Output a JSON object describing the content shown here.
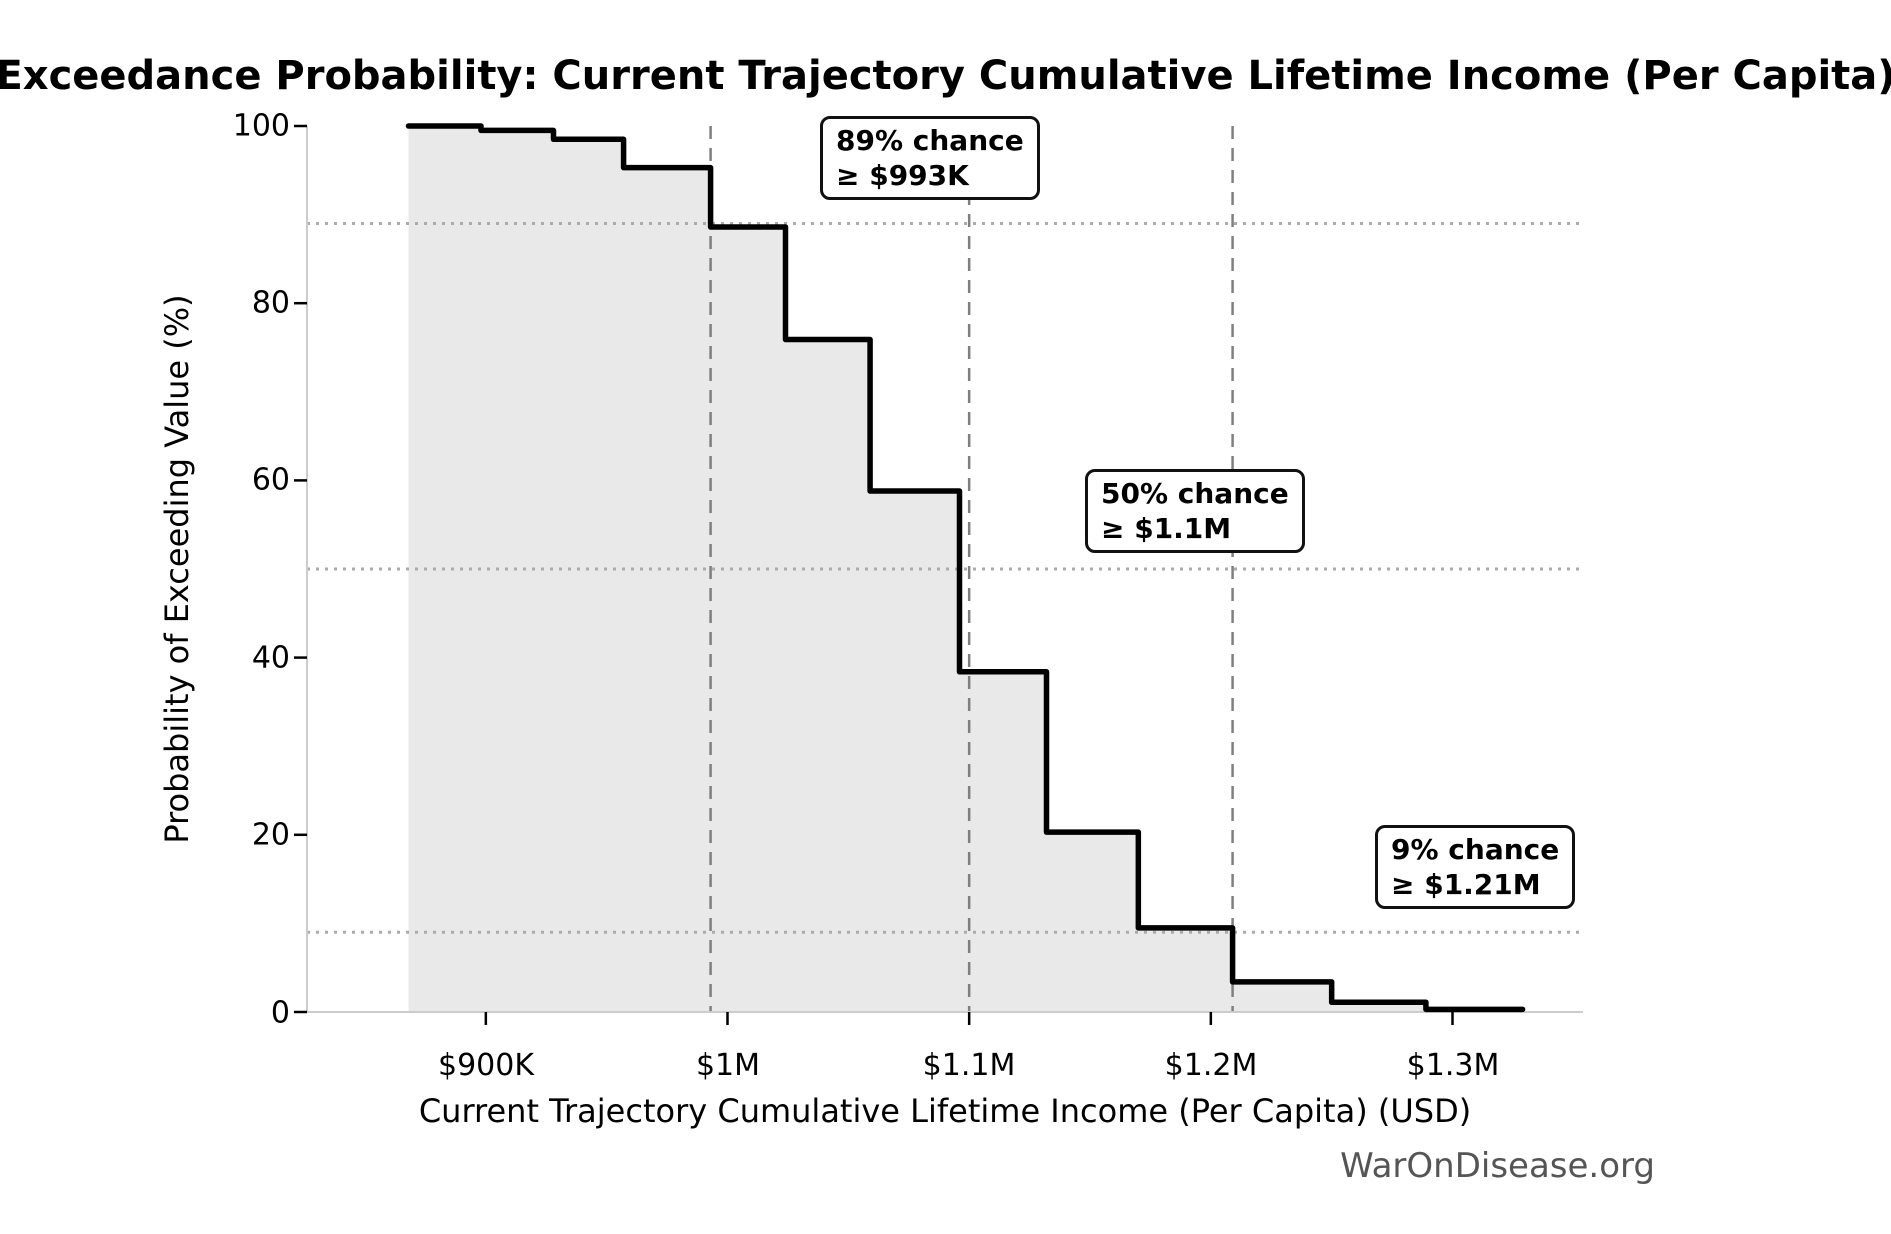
{
  "title": "Exceedance Probability: Current Trajectory Cumulative Lifetime Income (Per Capita)",
  "watermark": "WarOnDisease.org",
  "chart_data": {
    "type": "line",
    "subtype": "exceedance-step-curve",
    "title": "Exceedance Probability: Current Trajectory Cumulative Lifetime Income (Per Capita)",
    "xlabel": "Current Trajectory Cumulative Lifetime Income (Per Capita) (USD)",
    "ylabel": "Probability of Exceeding Value (%)",
    "x_units": "thousand USD",
    "xlim": [
      826,
      1354
    ],
    "ylim": [
      0,
      100
    ],
    "grid": "off",
    "legend": "none",
    "x_ticks": [
      {
        "value": 900,
        "label": "$900K"
      },
      {
        "value": 1000,
        "label": "$1M"
      },
      {
        "value": 1100,
        "label": "$1.1M"
      },
      {
        "value": 1200,
        "label": "$1.2M"
      },
      {
        "value": 1300,
        "label": "$1.3M"
      }
    ],
    "y_ticks": [
      {
        "value": 0,
        "label": "0"
      },
      {
        "value": 20,
        "label": "20"
      },
      {
        "value": 40,
        "label": "40"
      },
      {
        "value": 60,
        "label": "60"
      },
      {
        "value": 80,
        "label": "80"
      },
      {
        "value": 100,
        "label": "100"
      }
    ],
    "series": [
      {
        "name": "Probability of exceeding value",
        "style": "step-post",
        "filled": true,
        "points": [
          [
            868,
            100
          ],
          [
            898,
            99.5
          ],
          [
            928,
            98.5
          ],
          [
            957,
            95.3
          ],
          [
            993,
            88.6
          ],
          [
            1024,
            75.9
          ],
          [
            1059,
            58.8
          ],
          [
            1096,
            38.4
          ],
          [
            1132,
            20.3
          ],
          [
            1170,
            9.5
          ],
          [
            1209,
            3.4
          ],
          [
            1250,
            1.1
          ],
          [
            1289,
            0.3
          ]
        ],
        "x_end": 1329
      }
    ],
    "reference_lines": {
      "vertical_dashed_x": [
        993,
        1100,
        1209
      ],
      "horizontal_dotted_y": [
        89,
        50,
        9
      ]
    },
    "annotations": [
      {
        "line1": "89% chance",
        "line2": "≥ $993K",
        "percent": 89,
        "threshold": "$993K"
      },
      {
        "line1": "50% chance",
        "line2": "≥ $1.1M",
        "percent": 50,
        "threshold": "$1.1M"
      },
      {
        "line1": "9% chance",
        "line2": "≥ $1.21M",
        "percent": 9,
        "threshold": "$1.21M"
      }
    ],
    "colors": {
      "curve": "#000000",
      "fill": "#e9e9e9",
      "dashed_line": "#7f7f7f",
      "dotted_line": "#ababab",
      "spine": "#cccccc",
      "tick": "#000000",
      "text": "#000000",
      "watermark": "#555555",
      "annotation_border": "#111111",
      "annotation_bg": "#ffffff"
    }
  }
}
